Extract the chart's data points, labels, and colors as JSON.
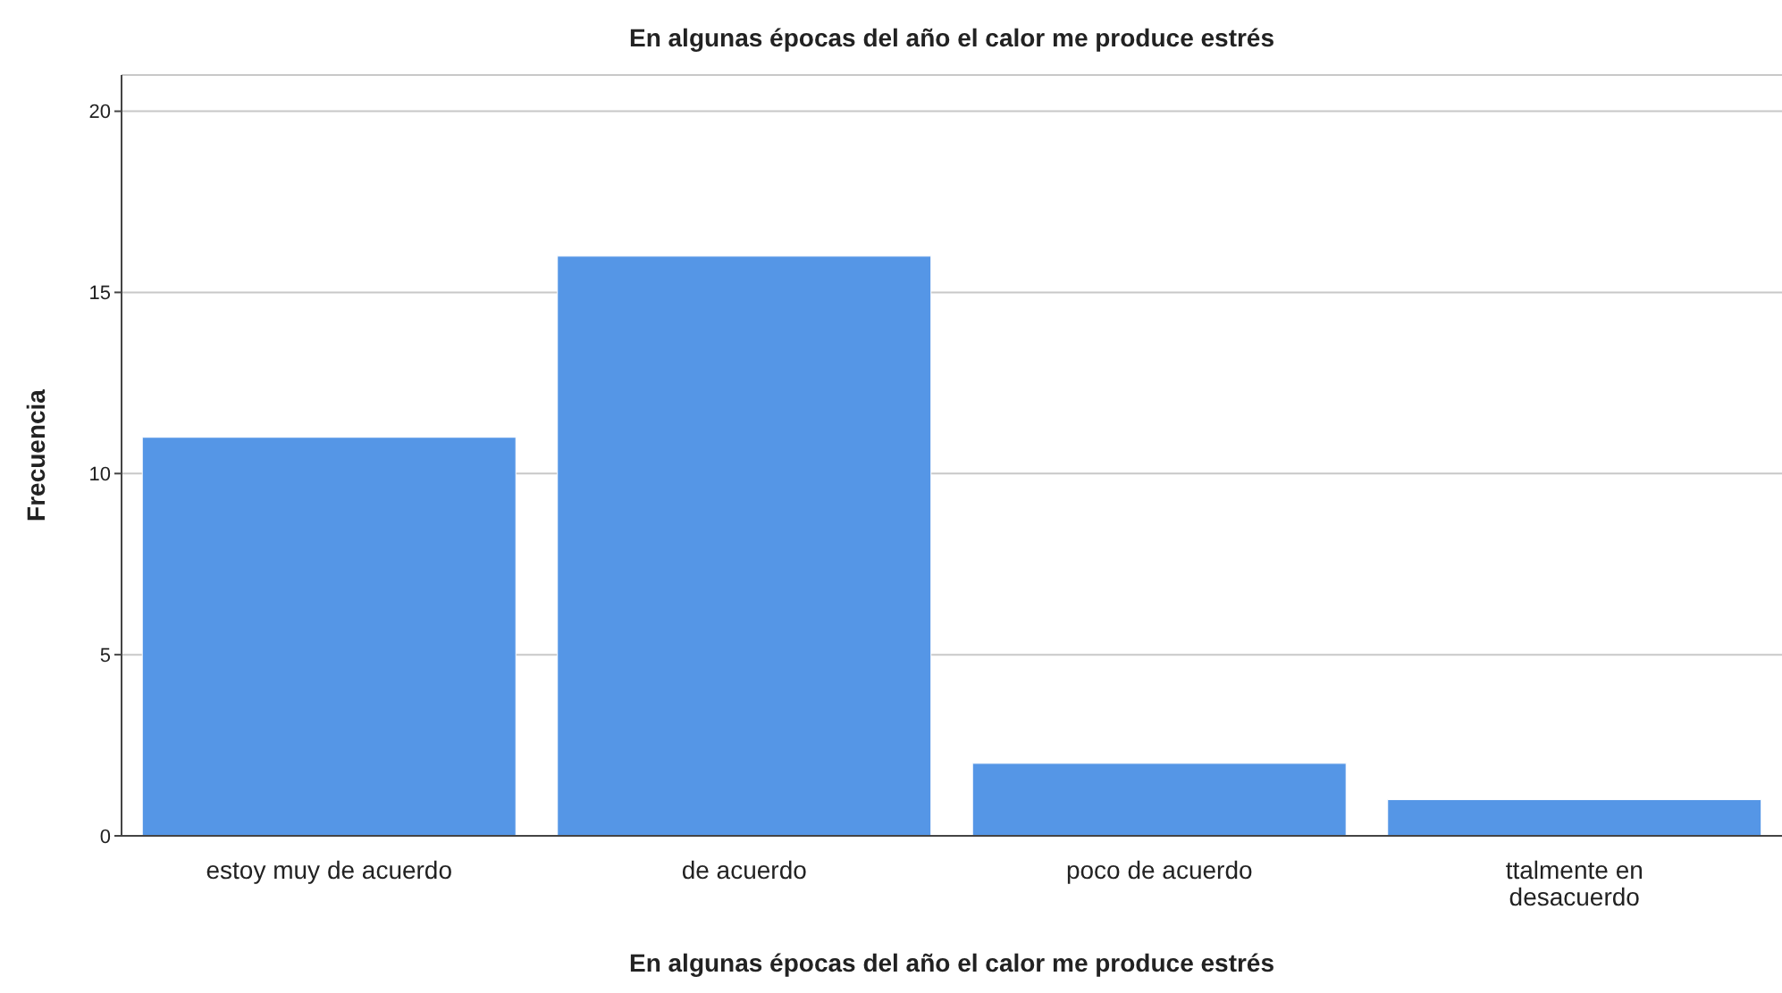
{
  "chart_data": {
    "type": "bar",
    "title": "En algunas épocas del año el calor me produce estrés",
    "xlabel": "En algunas épocas del año el calor me produce estrés",
    "ylabel": "Frecuencia",
    "categories": [
      "estoy muy de acuerdo",
      "de acuerdo",
      "poco de acuerdo",
      "ttalmente en desacuerdo"
    ],
    "values": [
      11,
      16,
      2,
      1
    ],
    "color": "#5596e6",
    "ylim": [
      0,
      21
    ],
    "yticks": [
      0,
      5,
      10,
      15,
      20
    ],
    "grid": "y",
    "legend": false
  }
}
